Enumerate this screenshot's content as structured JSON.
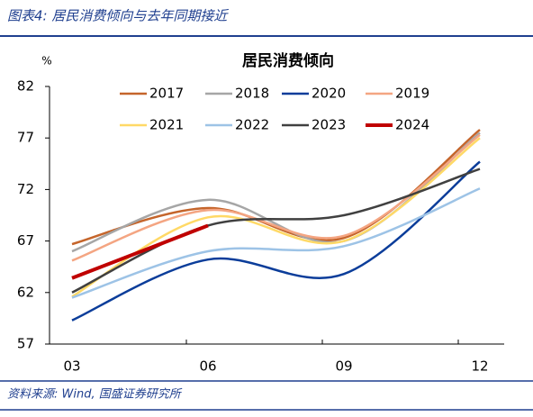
{
  "header": "图表4: 居民消费倾向与去年同期接近",
  "source": "资料来源: Wind, 国盛证券研究所",
  "chart_data": {
    "type": "line",
    "title": "居民消费倾向",
    "y_unit": "%",
    "categories": [
      "03",
      "06",
      "09",
      "12"
    ],
    "ylim": [
      57,
      82
    ],
    "yticks": [
      57,
      62,
      67,
      72,
      77,
      82
    ],
    "series": [
      {
        "name": "2017",
        "color": "#c5652b",
        "values": [
          66.7,
          70.2,
          67.3,
          77.8
        ]
      },
      {
        "name": "2018",
        "color": "#a6a6a6",
        "values": [
          66.0,
          71.0,
          67.0,
          77.5
        ]
      },
      {
        "name": "2020",
        "color": "#0b3d9a",
        "values": [
          59.3,
          65.2,
          63.8,
          74.7
        ]
      },
      {
        "name": "2019",
        "color": "#f4a582",
        "values": [
          65.1,
          70.0,
          67.5,
          77.3
        ]
      },
      {
        "name": "2021",
        "color": "#ffd966",
        "values": [
          61.6,
          69.3,
          67.0,
          77.0
        ]
      },
      {
        "name": "2022",
        "color": "#9dc3e6",
        "values": [
          61.5,
          66.0,
          66.5,
          72.1
        ]
      },
      {
        "name": "2023",
        "color": "#404040",
        "values": [
          62.0,
          68.5,
          69.5,
          74.0
        ]
      },
      {
        "name": "2024",
        "color": "#c00000",
        "values": [
          63.4,
          68.5,
          null,
          null
        ]
      }
    ]
  }
}
